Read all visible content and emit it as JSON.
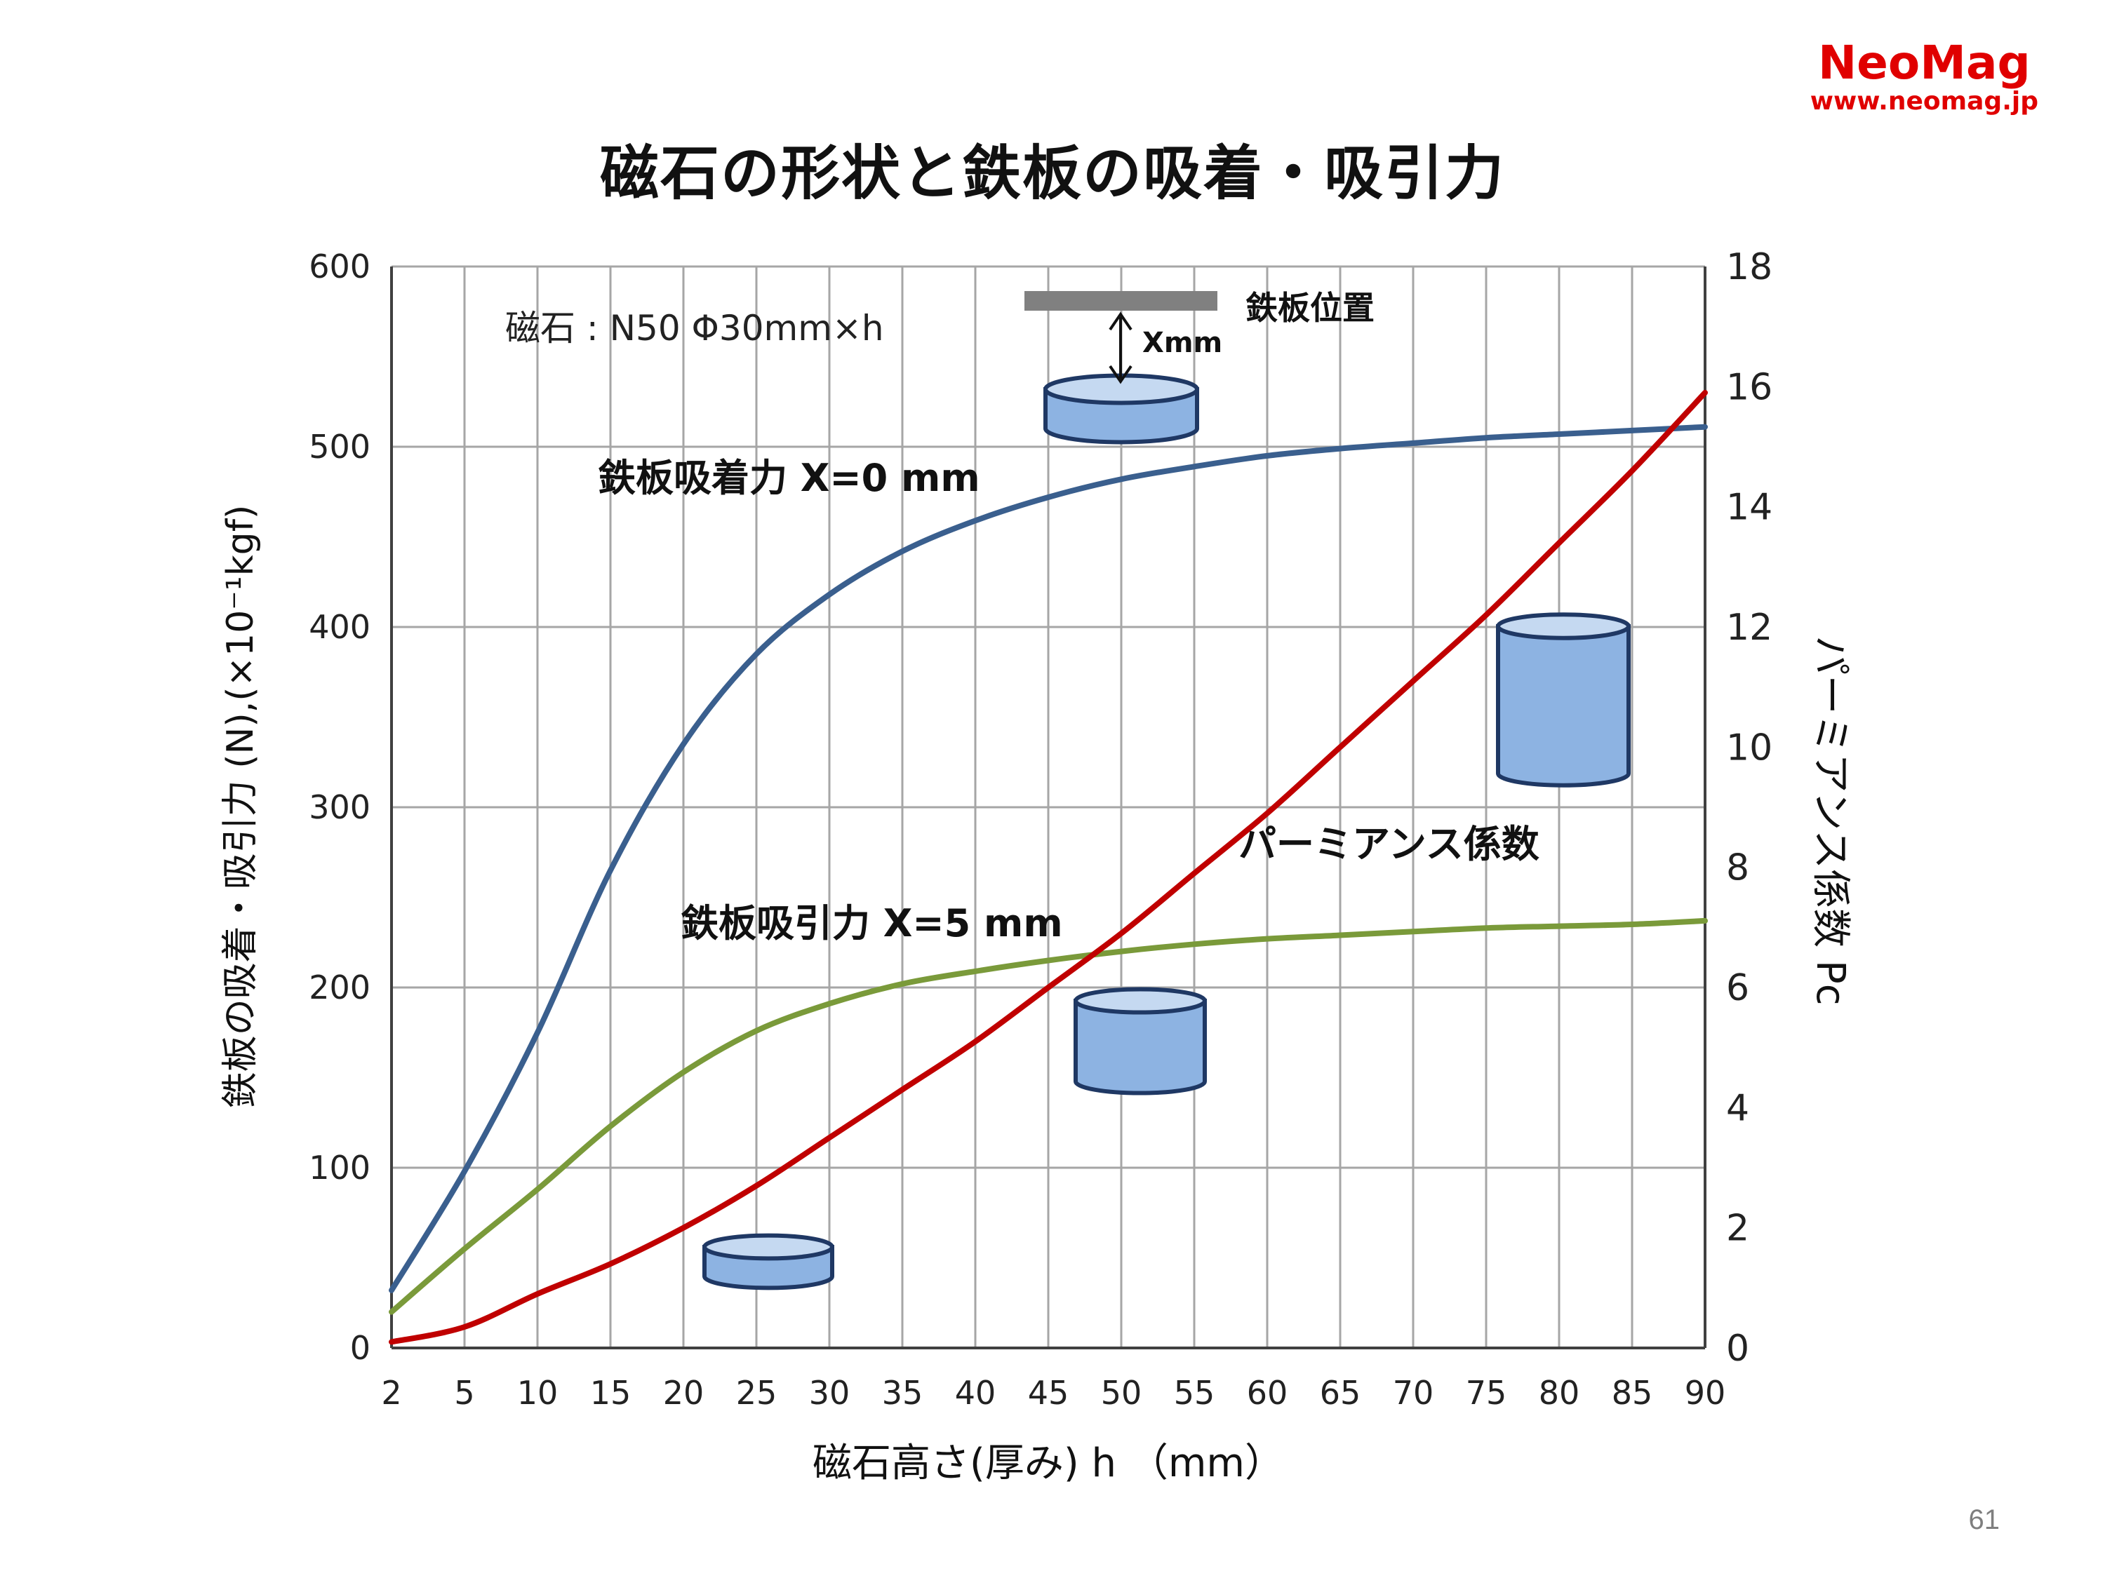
{
  "brand": {
    "name": "NeoMag",
    "url": "www.neomag.jp",
    "color": "#e00000"
  },
  "slide": {
    "title": "磁石の形状と鉄板の吸着・吸引力",
    "page_number": "61"
  },
  "chart_data": {
    "type": "line",
    "title": "磁石の形状と鉄板の吸着・吸引力",
    "xlabel": "磁石高さ(厚み) h （mm）",
    "ylabel": "鉄板の吸着・吸引力 (N),(×10⁻¹kgf)",
    "y2label": "パーミアンス係数 Pc",
    "xticks": [
      2,
      5,
      10,
      15,
      20,
      25,
      30,
      35,
      40,
      45,
      50,
      55,
      60,
      65,
      70,
      75,
      80,
      85,
      90
    ],
    "yticks": [
      0,
      100,
      200,
      300,
      400,
      500,
      600
    ],
    "y2ticks": [
      0,
      2,
      4,
      6,
      8,
      10,
      12,
      14,
      16,
      18
    ],
    "xlim": [
      2,
      90
    ],
    "ylim": [
      0,
      600
    ],
    "y2lim": [
      0,
      18
    ],
    "grid": true,
    "series": [
      {
        "name": "鉄板吸着力 X=0 mm",
        "axis": "left",
        "color": "#3a5f8e",
        "x": [
          2,
          5,
          10,
          15,
          20,
          25,
          30,
          35,
          40,
          45,
          50,
          55,
          60,
          65,
          70,
          75,
          80,
          85,
          90
        ],
        "values": [
          32,
          98,
          175,
          265,
          335,
          385,
          418,
          442,
          459,
          472,
          482,
          489,
          495,
          499,
          502,
          505,
          507,
          509,
          511
        ]
      },
      {
        "name": "鉄板吸引力 X=5 mm",
        "axis": "left",
        "color": "#7a9a3a",
        "x": [
          2,
          5,
          10,
          15,
          20,
          25,
          30,
          35,
          40,
          45,
          50,
          55,
          60,
          65,
          70,
          75,
          80,
          85,
          90
        ],
        "values": [
          20,
          55,
          88,
          123,
          153,
          176,
          191,
          202,
          209,
          215,
          220,
          224,
          227,
          229,
          231,
          233,
          234,
          235,
          237
        ]
      },
      {
        "name": "パーミアンス係数",
        "axis": "right",
        "color": "#c00000",
        "x": [
          2,
          5,
          10,
          15,
          20,
          25,
          30,
          35,
          40,
          45,
          50,
          55,
          60,
          65,
          70,
          75,
          80,
          85,
          90
        ],
        "values": [
          0.1,
          0.35,
          0.9,
          1.4,
          2.0,
          2.7,
          3.5,
          4.3,
          5.1,
          6.0,
          6.9,
          7.9,
          8.9,
          10.0,
          11.1,
          12.2,
          13.4,
          14.6,
          15.9
        ]
      }
    ],
    "annotations": {
      "magnet_label": "磁石 : N50 Φ30mm×h",
      "plate_label": "鉄板位置",
      "gap_label": "Xmm",
      "label_x0": "鉄板吸着力 X=0 mm",
      "label_x5": "鉄板吸引力 X=5 mm",
      "label_pc": "パーミアンス係数"
    },
    "colors": {
      "grid": "#a6a6a6",
      "plate": "#808080",
      "magnet_fill": "#8db3e2",
      "magnet_top": "#c5d9f1",
      "magnet_stroke": "#1f3864"
    }
  }
}
